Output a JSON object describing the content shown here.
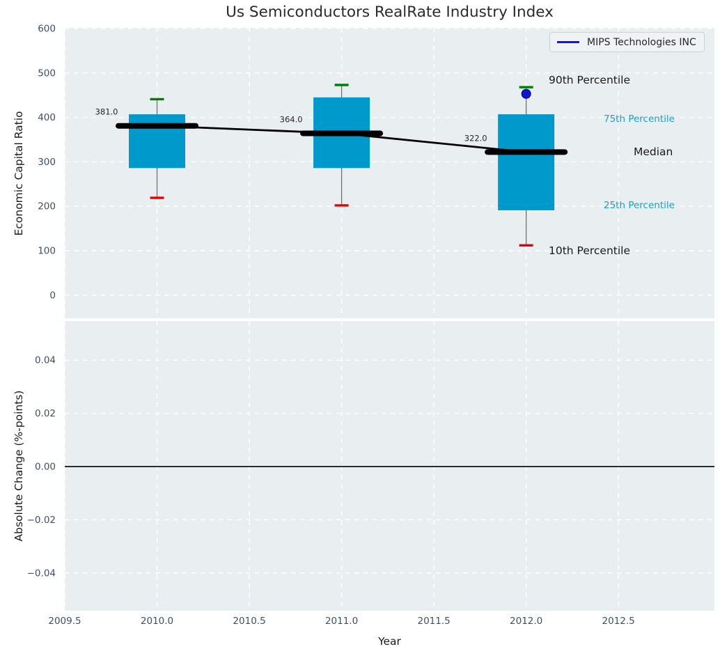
{
  "title": "Us Semiconductors RealRate Industry Index",
  "legend": {
    "label": "MIPS Technologies INC"
  },
  "colors": {
    "axes_bg": "#e9eef0",
    "grid": "#ffffff",
    "box_fill": "#0099cb",
    "p90_cap": "#008000",
    "p10_cap": "#e80000",
    "whisker": "#707070",
    "median_line": "#000000",
    "company_line": "#1414e0",
    "company_dot": "#1212d2",
    "company_dot_edge": "#000080",
    "tick_text": "#3e4f64",
    "value_label_text": "#262626",
    "percentile_label": "#1b9ecd",
    "zero_line": "#000000"
  },
  "annotations": {
    "p90": {
      "text": "90th Percentile"
    },
    "p75": {
      "text": "75th Percentile"
    },
    "median": {
      "text": "Median"
    },
    "p25": {
      "text": "25th Percentile"
    },
    "p10": {
      "text": "10th Percentile"
    }
  },
  "chart_data": [
    {
      "type": "boxplot",
      "title": "Us Semiconductors RealRate Industry Index",
      "ylabel": "Economic Capital Ratio",
      "xlabel": "",
      "ylim": [
        -52,
        601.5
      ],
      "xlim": [
        2009.5,
        2013.02
      ],
      "yticks": [
        0,
        100,
        200,
        300,
        400,
        500,
        600
      ],
      "ytick_labels": [
        "0",
        "100",
        "200",
        "300",
        "400",
        "500",
        "600"
      ],
      "grid": true,
      "legend_entries": [
        "MIPS Technologies INC"
      ],
      "legend_position": "upper right",
      "boxes": [
        {
          "x": 2010,
          "p10": 219,
          "p25": 286,
          "median": 381,
          "p75": 407,
          "p90": 441,
          "median_label": "381.0"
        },
        {
          "x": 2011,
          "p10": 202,
          "p25": 286,
          "median": 364,
          "p75": 445,
          "p90": 473,
          "median_label": "364.0"
        },
        {
          "x": 2012,
          "p10": 112,
          "p25": 191,
          "median": 322,
          "p75": 407,
          "p90": 468,
          "median_label": "322.0",
          "company_point": 453
        }
      ],
      "median_trend": {
        "x": [
          2010,
          2011,
          2012
        ],
        "y": [
          381,
          364,
          322
        ]
      }
    },
    {
      "type": "line",
      "title": "",
      "ylabel": "Absolute Change (%-points)",
      "xlabel": "Year",
      "ylim": [
        -0.0542,
        0.0547
      ],
      "xlim": [
        2009.5,
        2013.02
      ],
      "yticks": [
        -0.04,
        -0.02,
        0.0,
        0.02,
        0.04
      ],
      "ytick_labels": [
        "−0.04",
        "−0.02",
        "0.00",
        "0.02",
        "0.04"
      ],
      "xticks": [
        2009.5,
        2010.0,
        2010.5,
        2011.0,
        2011.5,
        2012.0,
        2012.5
      ],
      "xtick_labels": [
        "2009.5",
        "2010.0",
        "2010.5",
        "2011.0",
        "2011.5",
        "2012.0",
        "2012.5"
      ],
      "grid": true,
      "series": [],
      "zero_line_y": 0.0
    }
  ]
}
